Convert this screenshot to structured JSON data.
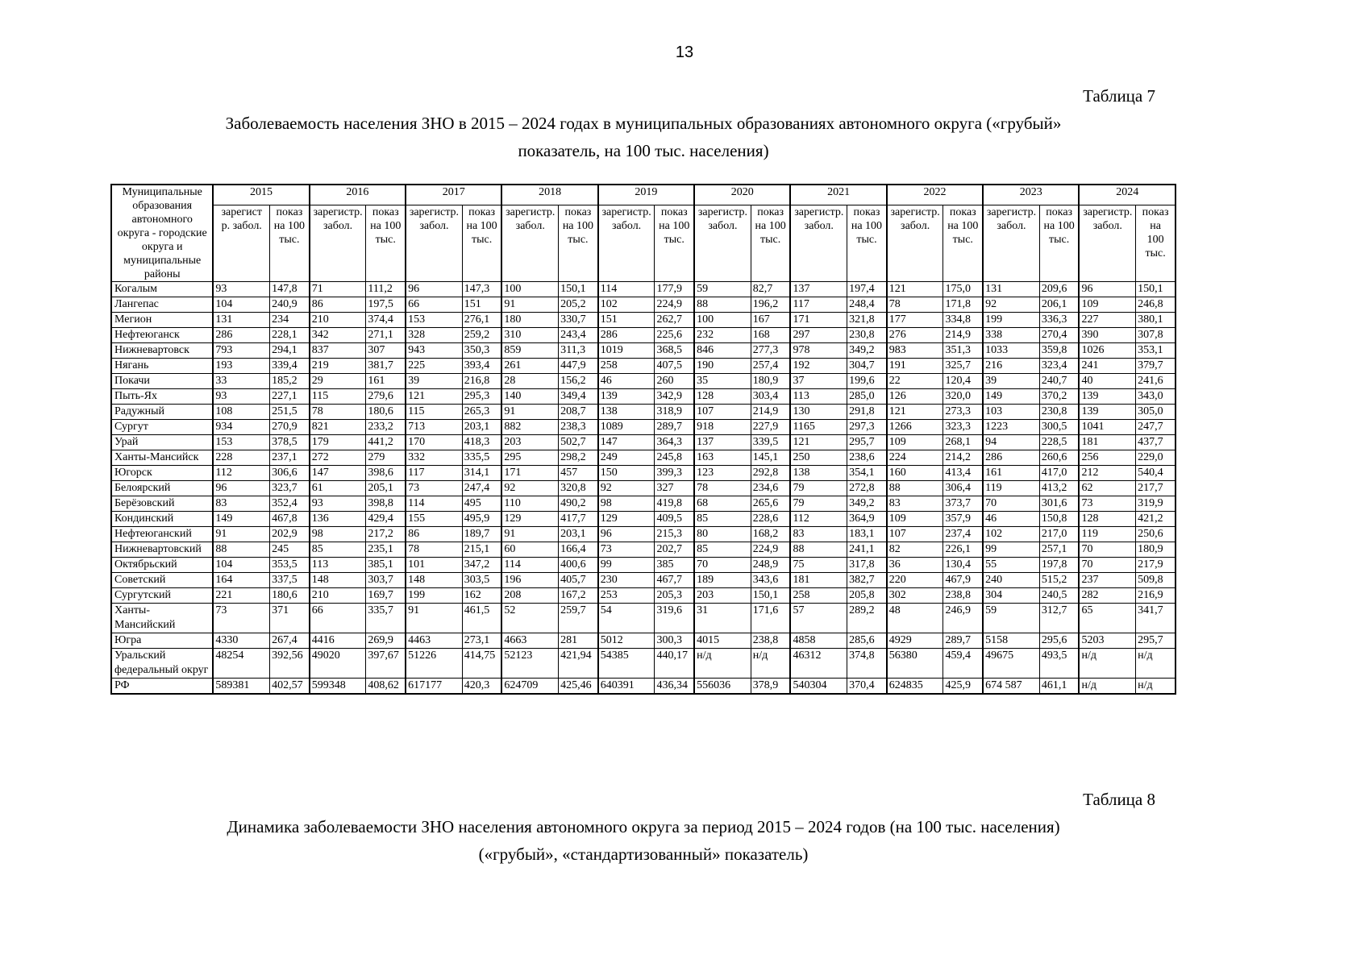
{
  "page": {
    "number": "13"
  },
  "table7": {
    "caption": "Таблица 7",
    "title_line1": "Заболеваемость населения ЗНО в 2015 – 2024 годах в муниципальных образованиях автономного округа («грубый»",
    "title_line2": "показатель, на 100 тыс. населения)",
    "corner_header": "Муниципальные\nобразования\nавтономного\nокруга - городские\nокруга и\nмуниципальные\nрайоны",
    "years": [
      {
        "label": "2015",
        "reg": "зарегист\nр. забол.",
        "rate": "показ\nна 100\nтыс."
      },
      {
        "label": "2016",
        "reg": "зарегистр.\nзабол.",
        "rate": "показ\nна 100\nтыс."
      },
      {
        "label": "2017",
        "reg": "зарегистр.\nзабол.",
        "rate": "показ\nна 100\nтыс."
      },
      {
        "label": "2018",
        "reg": "зарегистр.\nзабол.",
        "rate": "показ\nна 100\nтыс."
      },
      {
        "label": "2019",
        "reg": "зарегистр.\nзабол.",
        "rate": "показ\nна 100\nтыс."
      },
      {
        "label": "2020",
        "reg": "зарегистр.\nзабол.",
        "rate": "показ\nна 100\nтыс."
      },
      {
        "label": "2021",
        "reg": "зарегистр.\nзабол.",
        "rate": "показ\nна 100\nтыс."
      },
      {
        "label": "2022",
        "reg": "зарегистр.\nзабол.",
        "rate": "показ\nна 100\nтыс."
      },
      {
        "label": "2023",
        "reg": "зарегистр.\nзабол.",
        "rate": "показ\nна 100\nтыс."
      },
      {
        "label": "2024",
        "reg": "зарегистр.\nзабол.",
        "rate": "показ на\n100 тыс."
      }
    ],
    "rows": [
      {
        "name": "Когалым",
        "values": [
          "93",
          "147,8",
          "71",
          "111,2",
          "96",
          "147,3",
          "100",
          "150,1",
          "114",
          "177,9",
          "59",
          "82,7",
          "137",
          "197,4",
          "121",
          "175,0",
          "131",
          "209,6",
          "96",
          "150,1"
        ]
      },
      {
        "name": "Лангепас",
        "values": [
          "104",
          "240,9",
          "86",
          "197,5",
          "66",
          "151",
          "91",
          "205,2",
          "102",
          "224,9",
          "88",
          "196,2",
          "117",
          "248,4",
          "78",
          "171,8",
          "92",
          "206,1",
          "109",
          "246,8"
        ]
      },
      {
        "name": "Мегион",
        "values": [
          "131",
          "234",
          "210",
          "374,4",
          "153",
          "276,1",
          "180",
          "330,7",
          "151",
          "262,7",
          "100",
          "167",
          "171",
          "321,8",
          "177",
          "334,8",
          "199",
          "336,3",
          "227",
          "380,1"
        ]
      },
      {
        "name": "Нефтеюганск",
        "values": [
          "286",
          "228,1",
          "342",
          "271,1",
          "328",
          "259,2",
          "310",
          "243,4",
          "286",
          "225,6",
          "232",
          "168",
          "297",
          "230,8",
          "276",
          "214,9",
          "338",
          "270,4",
          "390",
          "307,8"
        ]
      },
      {
        "name": "Нижневартовск",
        "values": [
          "793",
          "294,1",
          "837",
          "307",
          "943",
          "350,3",
          "859",
          "311,3",
          "1019",
          "368,5",
          "846",
          "277,3",
          "978",
          "349,2",
          "983",
          "351,3",
          "1033",
          "359,8",
          "1026",
          "353,1"
        ]
      },
      {
        "name": "Нягань",
        "values": [
          "193",
          "339,4",
          "219",
          "381,7",
          "225",
          "393,4",
          "261",
          "447,9",
          "258",
          "407,5",
          "190",
          "257,4",
          "192",
          "304,7",
          "191",
          "325,7",
          "216",
          "323,4",
          "241",
          "379,7"
        ]
      },
      {
        "name": "Покачи",
        "values": [
          "33",
          "185,2",
          "29",
          "161",
          "39",
          "216,8",
          "28",
          "156,2",
          "46",
          "260",
          "35",
          "180,9",
          "37",
          "199,6",
          "22",
          "120,4",
          "39",
          "240,7",
          "40",
          "241,6"
        ]
      },
      {
        "name": "Пыть-Ях",
        "values": [
          "93",
          "227,1",
          "115",
          "279,6",
          "121",
          "295,3",
          "140",
          "349,4",
          "139",
          "342,9",
          "128",
          "303,4",
          "113",
          "285,0",
          "126",
          "320,0",
          "149",
          "370,2",
          "139",
          "343,0"
        ]
      },
      {
        "name": "Радужный",
        "values": [
          "108",
          "251,5",
          "78",
          "180,6",
          "115",
          "265,3",
          "91",
          "208,7",
          "138",
          "318,9",
          "107",
          "214,9",
          "130",
          "291,8",
          "121",
          "273,3",
          "103",
          "230,8",
          "139",
          "305,0"
        ]
      },
      {
        "name": "Сургут",
        "values": [
          "934",
          "270,9",
          "821",
          "233,2",
          "713",
          "203,1",
          "882",
          "238,3",
          "1089",
          "289,7",
          "918",
          "227,9",
          "1165",
          "297,3",
          "1266",
          "323,3",
          "1223",
          "300,5",
          "1041",
          "247,7"
        ]
      },
      {
        "name": "Урай",
        "values": [
          "153",
          "378,5",
          "179",
          "441,2",
          "170",
          "418,3",
          "203",
          "502,7",
          "147",
          "364,3",
          "137",
          "339,5",
          "121",
          "295,7",
          "109",
          "268,1",
          "94",
          "228,5",
          "181",
          "437,7"
        ]
      },
      {
        "name": "Ханты-Мансийск",
        "values": [
          "228",
          "237,1",
          "272",
          "279",
          "332",
          "335,5",
          "295",
          "298,2",
          "249",
          "245,8",
          "163",
          "145,1",
          "250",
          "238,6",
          "224",
          "214,2",
          "286",
          "260,6",
          "256",
          "229,0"
        ]
      },
      {
        "name": "Югорск",
        "values": [
          "112",
          "306,6",
          "147",
          "398,6",
          "117",
          "314,1",
          "171",
          "457",
          "150",
          "399,3",
          "123",
          "292,8",
          "138",
          "354,1",
          "160",
          "413,4",
          "161",
          "417,0",
          "212",
          "540,4"
        ]
      },
      {
        "name": "Белоярский",
        "values": [
          "96",
          "323,7",
          "61",
          "205,1",
          "73",
          "247,4",
          "92",
          "320,8",
          "92",
          "327",
          "78",
          "234,6",
          "79",
          "272,8",
          "88",
          "306,4",
          "119",
          "413,2",
          "62",
          "217,7"
        ]
      },
      {
        "name": "Берёзовский",
        "values": [
          "83",
          "352,4",
          "93",
          "398,8",
          "114",
          "495",
          "110",
          "490,2",
          "98",
          "419,8",
          "68",
          "265,6",
          "79",
          "349,2",
          "83",
          "373,7",
          "70",
          "301,6",
          "73",
          "319,9"
        ]
      },
      {
        "name": "Кондинский",
        "values": [
          "149",
          "467,8",
          "136",
          "429,4",
          "155",
          "495,9",
          "129",
          "417,7",
          "129",
          "409,5",
          "85",
          "228,6",
          "112",
          "364,9",
          "109",
          "357,9",
          "46",
          "150,8",
          "128",
          "421,2"
        ]
      },
      {
        "name": "Нефтеюганский",
        "values": [
          "91",
          "202,9",
          "98",
          "217,2",
          "86",
          "189,7",
          "91",
          "203,1",
          "96",
          "215,3",
          "80",
          "168,2",
          "83",
          "183,1",
          "107",
          "237,4",
          "102",
          "217,0",
          "119",
          "250,6"
        ]
      },
      {
        "name": "Нижневартовский",
        "values": [
          "88",
          "245",
          "85",
          "235,1",
          "78",
          "215,1",
          "60",
          "166,4",
          "73",
          "202,7",
          "85",
          "224,9",
          "88",
          "241,1",
          "82",
          "226,1",
          "99",
          "257,1",
          "70",
          "180,9"
        ]
      },
      {
        "name": "Октябрьский",
        "values": [
          "104",
          "353,5",
          "113",
          "385,1",
          "101",
          "347,2",
          "114",
          "400,6",
          "99",
          "385",
          "70",
          "248,9",
          "75",
          "317,8",
          "36",
          "130,4",
          "55",
          "197,8",
          "70",
          "217,9"
        ]
      },
      {
        "name": "Советский",
        "values": [
          "164",
          "337,5",
          "148",
          "303,7",
          "148",
          "303,5",
          "196",
          "405,7",
          "230",
          "467,7",
          "189",
          "343,6",
          "181",
          "382,7",
          "220",
          "467,9",
          "240",
          "515,2",
          "237",
          "509,8"
        ]
      },
      {
        "name": "Сургутский",
        "values": [
          "221",
          "180,6",
          "210",
          "169,7",
          "199",
          "162",
          "208",
          "167,2",
          "253",
          "205,3",
          "203",
          "150,1",
          "258",
          "205,8",
          "302",
          "238,8",
          "304",
          "240,5",
          "282",
          "216,9"
        ]
      },
      {
        "name": "Ханты-\nМансийский",
        "values": [
          "73",
          "371",
          "66",
          "335,7",
          "91",
          "461,5",
          "52",
          "259,7",
          "54",
          "319,6",
          "31",
          "171,6",
          "57",
          "289,2",
          "48",
          "246,9",
          "59",
          "312,7",
          "65",
          "341,7"
        ]
      },
      {
        "name": "Югра",
        "values": [
          "4330",
          "267,4",
          "4416",
          "269,9",
          "4463",
          "273,1",
          "4663",
          "281",
          "5012",
          "300,3",
          "4015",
          "238,8",
          "4858",
          "285,6",
          "4929",
          "289,7",
          "5158",
          "295,6",
          "5203",
          "295,7"
        ]
      },
      {
        "name": "Уральский\nфедеральный округ",
        "values": [
          "48254",
          "392,56",
          "49020",
          "397,67",
          "51226",
          "414,75",
          "52123",
          "421,94",
          "54385",
          "440,17",
          "н/д",
          "н/д",
          "46312",
          "374,8",
          "56380",
          "459,4",
          "49675",
          "493,5",
          "н/д",
          "н/д"
        ]
      },
      {
        "name": "РФ",
        "values": [
          "589381",
          "402,57",
          "599348",
          "408,62",
          "617177",
          "420,3",
          "624709",
          "425,46",
          "640391",
          "436,34",
          "556036",
          "378,9",
          "540304",
          "370,4",
          "624835",
          "425,9",
          "674 587",
          "461,1",
          "н/д",
          "н/д"
        ]
      }
    ]
  },
  "table8": {
    "caption": "Таблица 8",
    "title_line1": "Динамика заболеваемости ЗНО населения автономного округа за период 2015 – 2024 годов (на 100 тыс. населения)",
    "title_line2": "(«грубый», «стандартизованный» показатель)"
  }
}
